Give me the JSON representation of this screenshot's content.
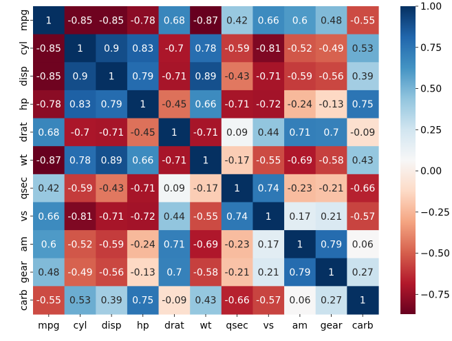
{
  "chart_data": {
    "type": "heatmap",
    "title": "",
    "xlabel": "",
    "ylabel": "",
    "variables": [
      "mpg",
      "cyl",
      "disp",
      "hp",
      "drat",
      "wt",
      "qsec",
      "vs",
      "am",
      "gear",
      "carb"
    ],
    "matrix": [
      [
        1,
        -0.85,
        -0.85,
        -0.78,
        0.68,
        -0.87,
        0.42,
        0.66,
        0.6,
        0.48,
        -0.55
      ],
      [
        -0.85,
        1,
        0.9,
        0.83,
        -0.7,
        0.78,
        -0.59,
        -0.81,
        -0.52,
        -0.49,
        0.53
      ],
      [
        -0.85,
        0.9,
        1,
        0.79,
        -0.71,
        0.89,
        -0.43,
        -0.71,
        -0.59,
        -0.56,
        0.39
      ],
      [
        -0.78,
        0.83,
        0.79,
        1,
        -0.45,
        0.66,
        -0.71,
        -0.72,
        -0.24,
        -0.13,
        0.75
      ],
      [
        0.68,
        -0.7,
        -0.71,
        -0.45,
        1,
        -0.71,
        0.09,
        0.44,
        0.71,
        0.7,
        -0.09
      ],
      [
        -0.87,
        0.78,
        0.89,
        0.66,
        -0.71,
        1,
        -0.17,
        -0.55,
        -0.69,
        -0.58,
        0.43
      ],
      [
        0.42,
        -0.59,
        -0.43,
        -0.71,
        0.09,
        -0.17,
        1,
        0.74,
        -0.23,
        -0.21,
        -0.66
      ],
      [
        0.66,
        -0.81,
        -0.71,
        -0.72,
        0.44,
        -0.55,
        0.74,
        1,
        0.17,
        0.21,
        -0.57
      ],
      [
        0.6,
        -0.52,
        -0.59,
        -0.24,
        0.71,
        -0.69,
        -0.23,
        0.17,
        1,
        0.79,
        0.06
      ],
      [
        0.48,
        -0.49,
        -0.56,
        -0.13,
        0.7,
        -0.58,
        -0.21,
        0.21,
        0.79,
        1,
        0.27
      ],
      [
        -0.55,
        0.53,
        0.39,
        0.75,
        -0.09,
        0.43,
        -0.66,
        -0.57,
        0.06,
        0.27,
        1
      ]
    ],
    "annotated": true,
    "colormap": "RdBu",
    "value_range": [
      -0.87,
      1.0
    ],
    "colorbar_ticks": [
      {
        "value": 1.0,
        "label": "1.00"
      },
      {
        "value": 0.75,
        "label": "0.75"
      },
      {
        "value": 0.5,
        "label": "0.50"
      },
      {
        "value": 0.25,
        "label": "0.25"
      },
      {
        "value": 0.0,
        "label": "0.00"
      },
      {
        "value": -0.25,
        "label": "−0.25"
      },
      {
        "value": -0.5,
        "label": "−0.50"
      },
      {
        "value": -0.75,
        "label": "−0.75"
      }
    ],
    "colorbar_position": "right"
  }
}
